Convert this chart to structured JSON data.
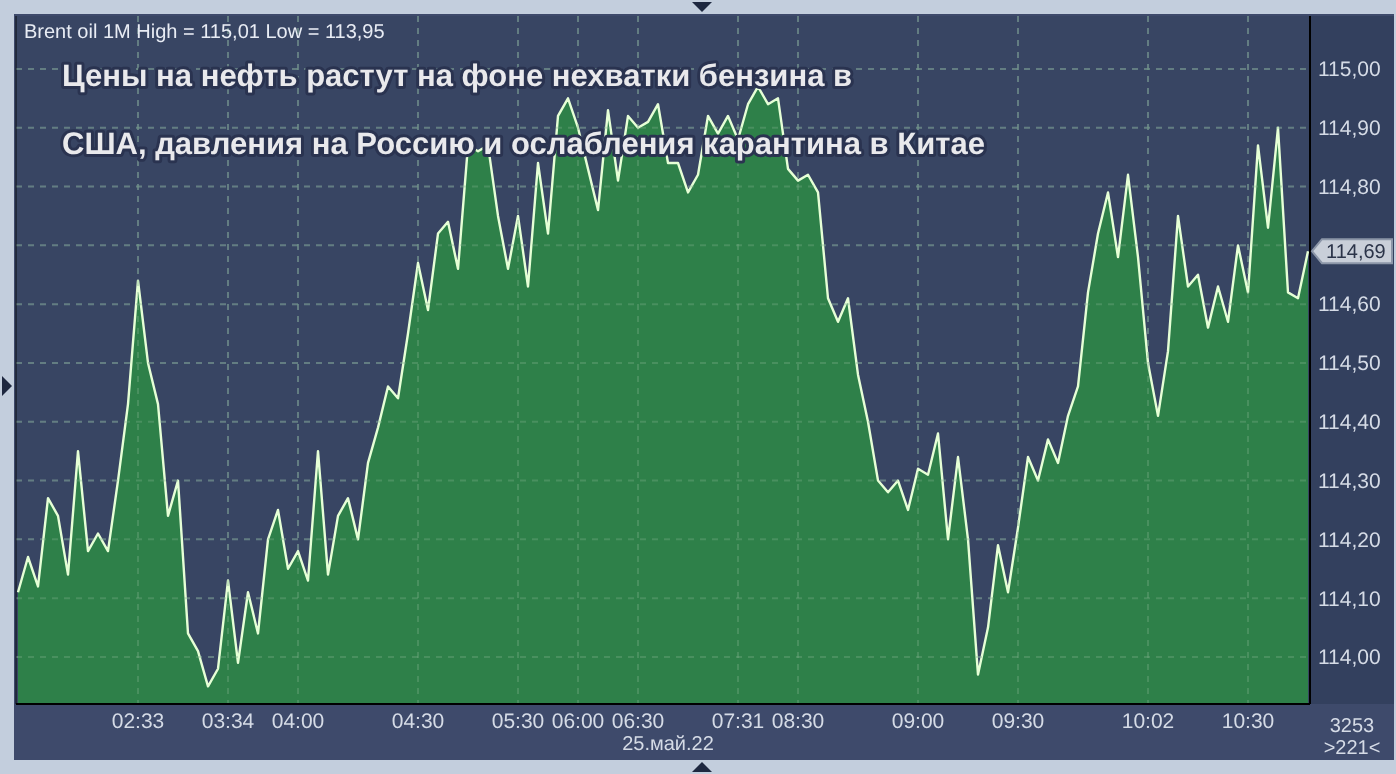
{
  "chart_data": {
    "type": "area",
    "title": "Цены на нефть растут на фоне нехватки бензина в США, давления на Россию и ослабления карантина в Китае",
    "subtitle": "Brent oil 1M High = 115,01 Low = 113,95",
    "categories": [
      null,
      null,
      null,
      null,
      null,
      null,
      null,
      null,
      null,
      null,
      null,
      null,
      "02:33",
      null,
      null,
      null,
      null,
      null,
      null,
      null,
      null,
      "03:34",
      null,
      null,
      null,
      null,
      null,
      null,
      "04:00",
      null,
      null,
      null,
      null,
      null,
      null,
      null,
      null,
      null,
      null,
      null,
      "04:30",
      null,
      null,
      null,
      null,
      null,
      null,
      null,
      null,
      null,
      "05:30",
      null,
      null,
      null,
      null,
      null,
      "06:00",
      null,
      null,
      null,
      null,
      null,
      "06:30",
      null,
      null,
      null,
      null,
      null,
      null,
      null,
      null,
      null,
      "07:31",
      null,
      null,
      null,
      null,
      null,
      "08:30",
      null,
      null,
      null,
      null,
      null,
      null,
      null,
      null,
      null,
      null,
      null,
      "09:00",
      null,
      null,
      null,
      null,
      null,
      null,
      null,
      null,
      null,
      "09:30",
      null,
      null,
      null,
      null,
      null,
      null,
      null,
      null,
      null,
      null,
      null,
      null,
      "10:02",
      null,
      null,
      null,
      null,
      null,
      null,
      null,
      null,
      null,
      "10:30",
      null,
      null,
      null,
      null,
      null,
      null
    ],
    "series": [
      {
        "color": "#2e8049",
        "values": [
          114.11,
          114.17,
          114.12,
          114.27,
          114.24,
          114.14,
          114.35,
          114.18,
          114.21,
          114.18,
          114.3,
          114.43,
          114.64,
          114.5,
          114.43,
          114.24,
          114.3,
          114.04,
          114.01,
          113.95,
          113.98,
          114.13,
          113.99,
          114.11,
          114.04,
          114.2,
          114.25,
          114.15,
          114.18,
          114.13,
          114.35,
          114.14,
          114.24,
          114.27,
          114.2,
          114.33,
          114.39,
          114.46,
          114.44,
          114.55,
          114.67,
          114.59,
          114.72,
          114.74,
          114.66,
          114.87,
          114.86,
          114.87,
          114.75,
          114.66,
          114.75,
          114.63,
          114.84,
          114.72,
          114.92,
          114.95,
          114.9,
          114.83,
          114.76,
          114.93,
          114.81,
          114.92,
          114.9,
          114.91,
          114.94,
          114.84,
          114.84,
          114.79,
          114.82,
          114.92,
          114.89,
          114.92,
          114.88,
          114.94,
          114.97,
          114.94,
          114.95,
          114.83,
          114.81,
          114.82,
          114.79,
          114.61,
          114.57,
          114.61,
          114.48,
          114.4,
          114.3,
          114.28,
          114.3,
          114.25,
          114.32,
          114.31,
          114.38,
          114.2,
          114.34,
          114.2,
          113.97,
          114.05,
          114.19,
          114.11,
          114.22,
          114.34,
          114.3,
          114.37,
          114.33,
          114.41,
          114.46,
          114.62,
          114.72,
          114.79,
          114.68,
          114.82,
          114.68,
          114.5,
          114.41,
          114.52,
          114.75,
          114.63,
          114.65,
          114.56,
          114.63,
          114.57,
          114.7,
          114.62,
          114.87,
          114.73,
          114.9,
          114.62,
          114.61,
          114.69
        ]
      }
    ],
    "ylim": [
      113.92,
      115.09
    ],
    "yticks": [
      {
        "value": 114,
        "label": "114,00"
      },
      {
        "value": 114.1,
        "label": "114,10"
      },
      {
        "value": 114.2,
        "label": "114,20"
      },
      {
        "value": 114.3,
        "label": "114,30"
      },
      {
        "value": 114.4,
        "label": "114,40"
      },
      {
        "value": 114.5,
        "label": "114,50"
      },
      {
        "value": 114.6,
        "label": "114,60"
      },
      {
        "value": 114.7,
        "label": null
      },
      {
        "value": 114.8,
        "label": "114,80"
      },
      {
        "value": 114.9,
        "label": "114,90"
      },
      {
        "value": 115,
        "label": "115,00"
      }
    ],
    "grid": true,
    "marker": "none",
    "line_style": "solid",
    "annotations": [
      "114,69",
      "25.май.22",
      "3253",
      ">221<"
    ]
  }
}
